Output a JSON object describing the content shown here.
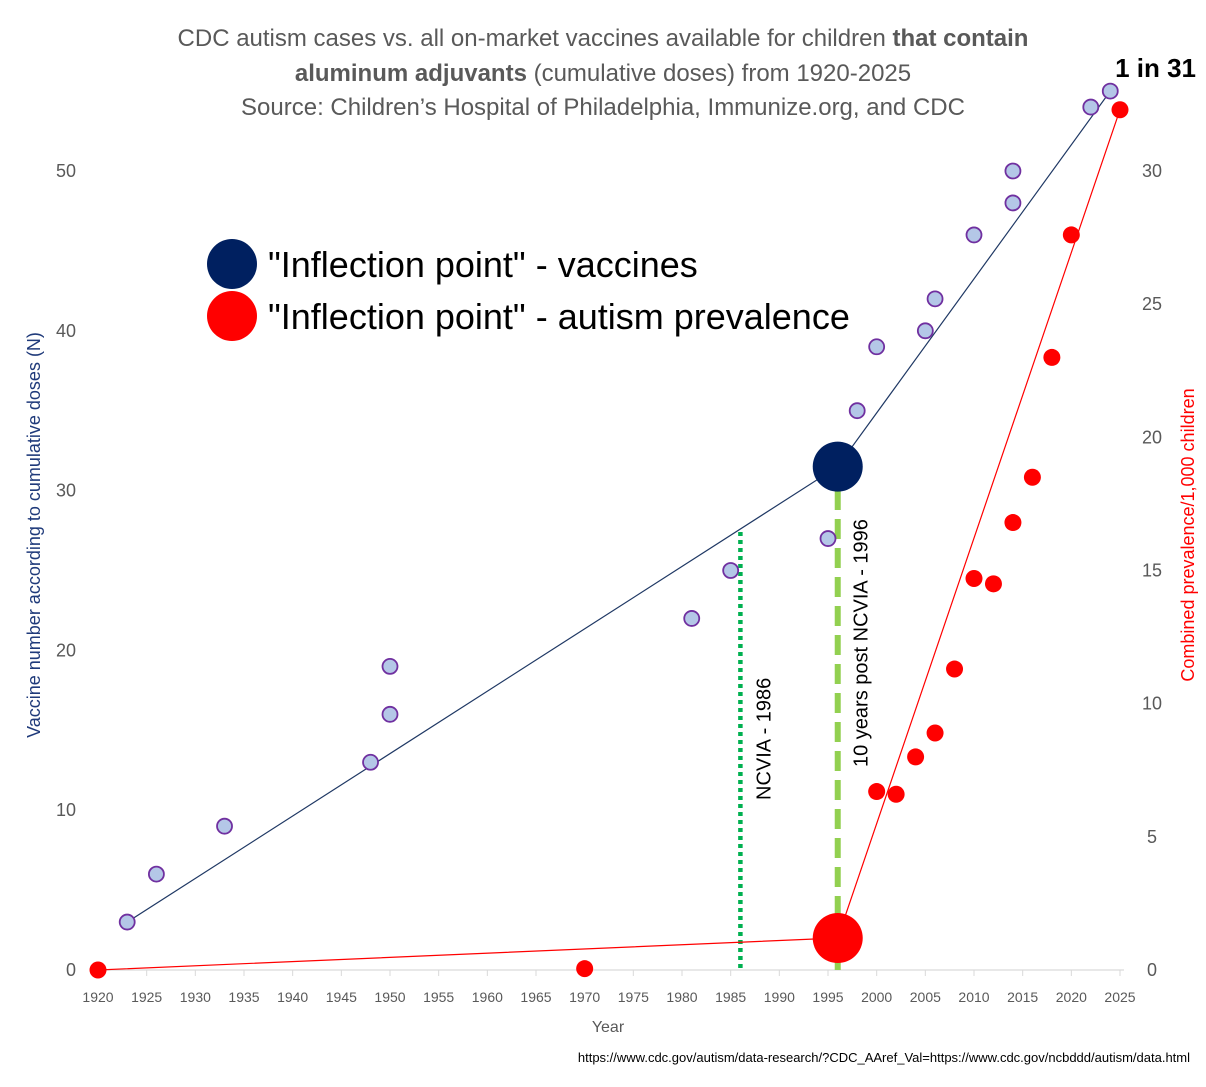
{
  "chart_data": {
    "type": "scatter",
    "title": {
      "line1_regular": "CDC autism cases vs. all on-market vaccines available for children ",
      "line1_bold": "that contain",
      "line2_bold": "aluminum adjuvants",
      "line2_regular": " (cumulative doses) from 1920-2025",
      "line3": "Source: Children’s Hospital of Philadelphia, Immunize.org, and CDC"
    },
    "corner_label": "1 in 31",
    "xlabel": "Year",
    "ylabel_left": "Vaccine number according to cumulative doses (N)",
    "ylabel_right": "Combined prevalence/1,000 children",
    "xlim": [
      1920,
      2025
    ],
    "ylim_left": [
      0,
      55
    ],
    "ylim_right": [
      0,
      33
    ],
    "x_ticks": [
      1920,
      1925,
      1930,
      1935,
      1940,
      1945,
      1950,
      1955,
      1960,
      1965,
      1970,
      1975,
      1980,
      1985,
      1990,
      1995,
      2000,
      2005,
      2010,
      2015,
      2020,
      2025
    ],
    "y_ticks_left": [
      0,
      10,
      20,
      30,
      40,
      50
    ],
    "y_ticks_right": [
      0,
      5,
      10,
      15,
      20,
      25,
      30
    ],
    "grid": false,
    "series": [
      {
        "axis": "left",
        "color": "#b4c7e7",
        "edge": "#7030a0",
        "points": [
          [
            1923,
            3
          ],
          [
            1926,
            6
          ],
          [
            1933,
            9
          ],
          [
            1948,
            13
          ],
          [
            1950,
            16
          ],
          [
            1950,
            19
          ],
          [
            1981,
            22
          ],
          [
            1985,
            25
          ],
          [
            1995,
            27
          ],
          [
            1998,
            35
          ],
          [
            2000,
            39
          ],
          [
            2005,
            40
          ],
          [
            2006,
            42
          ],
          [
            2010,
            46
          ],
          [
            2014,
            48
          ],
          [
            2014,
            50
          ],
          [
            2022,
            54
          ],
          [
            2024,
            55
          ]
        ]
      },
      {
        "axis": "right",
        "color": "#ff0000",
        "points": [
          [
            1920,
            0
          ],
          [
            1970,
            0.05
          ],
          [
            2000,
            6.7
          ],
          [
            2002,
            6.6
          ],
          [
            2004,
            8.0
          ],
          [
            2006,
            8.9
          ],
          [
            2008,
            11.3
          ],
          [
            2010,
            14.7
          ],
          [
            2012,
            14.5
          ],
          [
            2014,
            16.8
          ],
          [
            2016,
            18.5
          ],
          [
            2018,
            23.0
          ],
          [
            2020,
            27.6
          ],
          [
            2025,
            32.3
          ]
        ]
      }
    ],
    "trend_lines": [
      {
        "axis": "left",
        "color": "#1f3864",
        "points": [
          [
            1923,
            3
          ],
          [
            1996,
            31.5
          ],
          [
            2024,
            55
          ]
        ]
      },
      {
        "axis": "right",
        "color": "#ff0000",
        "points": [
          [
            1920,
            0
          ],
          [
            1996,
            1.2
          ],
          [
            2025,
            32.3
          ]
        ]
      }
    ],
    "highlight_markers": [
      {
        "axis": "left",
        "x": 1996,
        "y": 31.5,
        "color": "#002060"
      },
      {
        "axis": "right",
        "x": 1996,
        "y": 1.2,
        "color": "#ff0000"
      }
    ],
    "vertical_lines": [
      {
        "x": 1986,
        "color": "#00b050",
        "style": "dotted",
        "label": "NCVIA - 1986"
      },
      {
        "x": 1996,
        "color": "#92d050",
        "style": "dashed",
        "label": "10 years post NCVIA - 1996"
      }
    ],
    "legend": {
      "placement": "top-left",
      "items": [
        {
          "label": "\"Inflection point\" - vaccines",
          "color": "#002060"
        },
        {
          "label": "\"Inflection point\" - autism prevalence",
          "color": "#ff0000"
        }
      ]
    },
    "source_url": "https://www.cdc.gov/autism/data-research/?CDC_AAref_Val=https://www.cdc.gov/ncbddd/autism/data.html"
  }
}
